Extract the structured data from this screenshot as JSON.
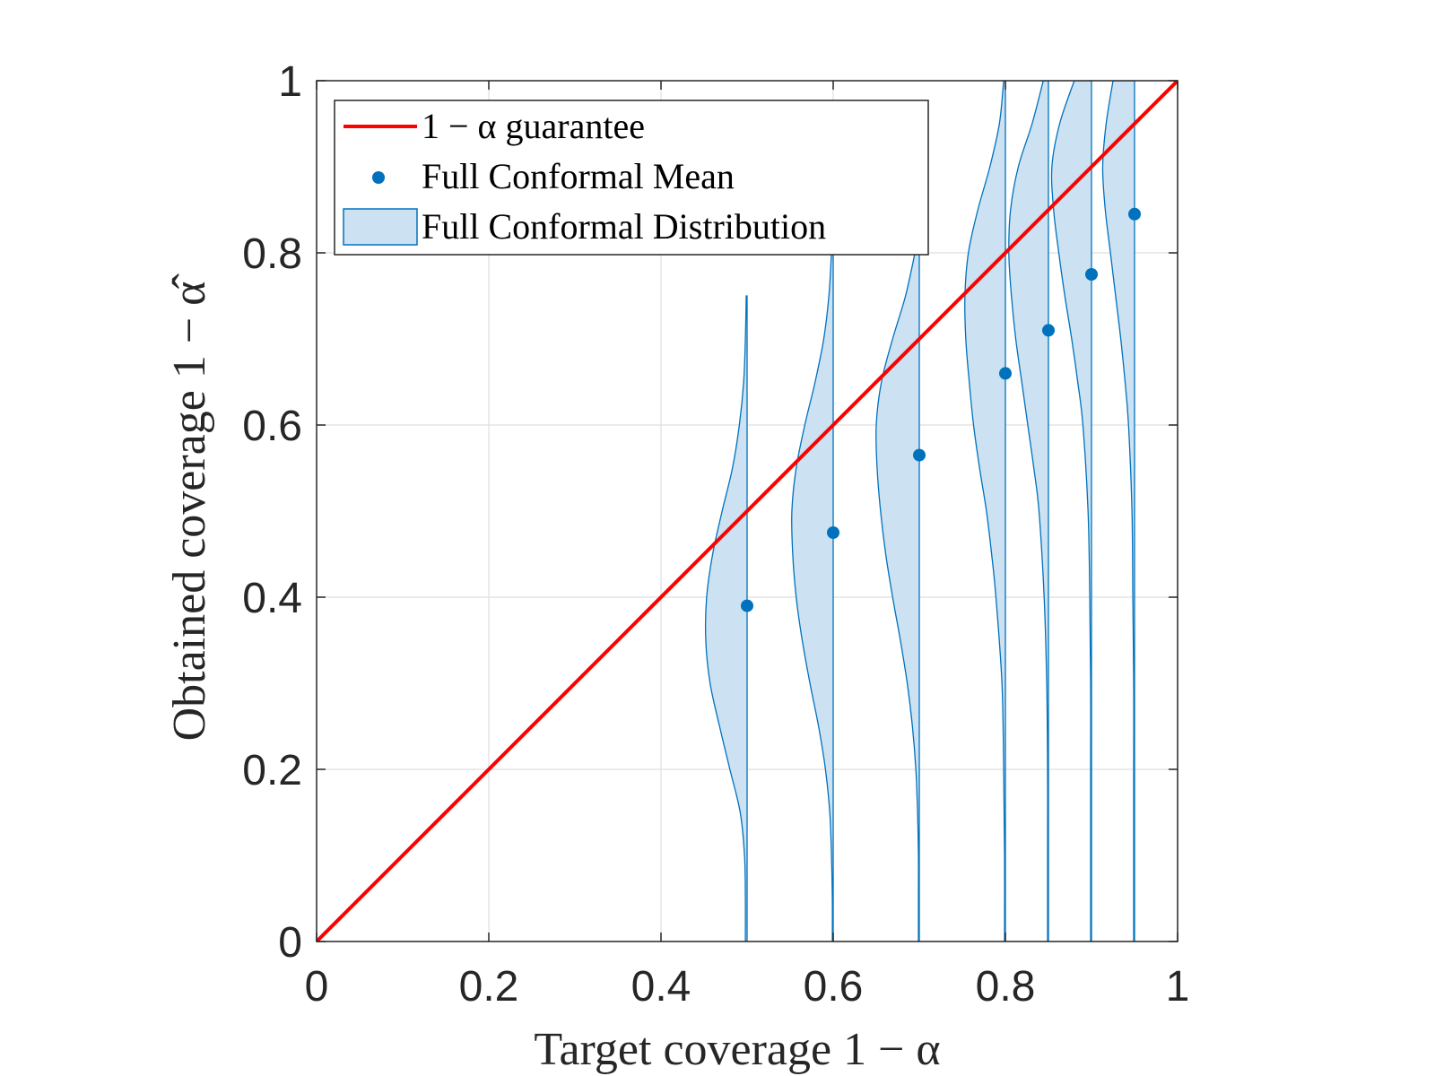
{
  "chart_data": {
    "type": "violin",
    "title": "",
    "xlabel": "Target coverage 1 − α",
    "ylabel": "Obtained coverage 1 − α̂",
    "xlim": [
      0,
      1
    ],
    "ylim": [
      0,
      1
    ],
    "grid": true,
    "legend_position": "top-left",
    "xticks": [
      0,
      0.2,
      0.4,
      0.6,
      0.8,
      1
    ],
    "yticks": [
      0,
      0.2,
      0.4,
      0.6,
      0.8,
      1
    ],
    "xtick_labels": [
      "0",
      "0.2",
      "0.4",
      "0.6",
      "0.8",
      "1"
    ],
    "ytick_labels": [
      "0",
      "0.2",
      "0.4",
      "0.6",
      "0.8",
      "1"
    ],
    "legend": [
      {
        "label": "1 − α guarantee",
        "kind": "line",
        "color": "#ff0000"
      },
      {
        "label": "Full Conformal Mean",
        "kind": "marker",
        "color": "#0072bd"
      },
      {
        "label": "Full Conformal Distribution",
        "kind": "patch",
        "color": "#0072bd"
      }
    ],
    "guarantee_line": {
      "x": [
        0,
        1
      ],
      "y": [
        0,
        1
      ],
      "color": "#ff0000"
    },
    "means": {
      "x": [
        0.5,
        0.6,
        0.7,
        0.8,
        0.85,
        0.9,
        0.95
      ],
      "y": [
        0.39,
        0.475,
        0.565,
        0.66,
        0.71,
        0.775,
        0.845
      ],
      "color": "#0072bd"
    },
    "distributions": [
      {
        "x": 0.5,
        "y": [
          0,
          0.05,
          0.1,
          0.15,
          0.2,
          0.25,
          0.3,
          0.35,
          0.4,
          0.45,
          0.5,
          0.55,
          0.6,
          0.65,
          0.7,
          0.75
        ],
        "half_width": [
          0.002,
          0.002,
          0.003,
          0.008,
          0.02,
          0.032,
          0.043,
          0.048,
          0.047,
          0.04,
          0.029,
          0.017,
          0.009,
          0.004,
          0.002,
          0.001
        ]
      },
      {
        "x": 0.6,
        "y": [
          0,
          0.05,
          0.1,
          0.15,
          0.2,
          0.25,
          0.3,
          0.35,
          0.4,
          0.45,
          0.5,
          0.55,
          0.6,
          0.65,
          0.7,
          0.75,
          0.8
        ],
        "half_width": [
          0.001,
          0.001,
          0.002,
          0.004,
          0.009,
          0.017,
          0.027,
          0.036,
          0.043,
          0.047,
          0.048,
          0.043,
          0.033,
          0.021,
          0.011,
          0.005,
          0.002
        ]
      },
      {
        "x": 0.7,
        "y": [
          0,
          0.05,
          0.1,
          0.15,
          0.2,
          0.25,
          0.3,
          0.35,
          0.4,
          0.45,
          0.5,
          0.55,
          0.6,
          0.65,
          0.7,
          0.75,
          0.8
        ],
        "half_width": [
          0.001,
          0.001,
          0.001,
          0.002,
          0.004,
          0.008,
          0.014,
          0.022,
          0.031,
          0.039,
          0.045,
          0.049,
          0.05,
          0.044,
          0.031,
          0.016,
          0.005
        ]
      },
      {
        "x": 0.8,
        "y": [
          0,
          0.1,
          0.2,
          0.3,
          0.4,
          0.45,
          0.5,
          0.55,
          0.6,
          0.65,
          0.7,
          0.75,
          0.8,
          0.85,
          0.9,
          0.95,
          1.0
        ],
        "half_width": [
          0.001,
          0.001,
          0.002,
          0.004,
          0.011,
          0.016,
          0.022,
          0.03,
          0.037,
          0.042,
          0.046,
          0.047,
          0.043,
          0.032,
          0.018,
          0.007,
          0.002
        ]
      },
      {
        "x": 0.85,
        "y": [
          0,
          0.1,
          0.2,
          0.3,
          0.4,
          0.5,
          0.55,
          0.6,
          0.65,
          0.7,
          0.75,
          0.8,
          0.85,
          0.9,
          0.95,
          1.0
        ],
        "half_width": [
          0.001,
          0.001,
          0.001,
          0.002,
          0.005,
          0.011,
          0.017,
          0.024,
          0.031,
          0.038,
          0.043,
          0.046,
          0.044,
          0.035,
          0.019,
          0.006
        ]
      },
      {
        "x": 0.9,
        "y": [
          0,
          0.1,
          0.2,
          0.3,
          0.4,
          0.5,
          0.6,
          0.65,
          0.7,
          0.75,
          0.8,
          0.85,
          0.9,
          0.95,
          1.0
        ],
        "half_width": [
          0.001,
          0.001,
          0.001,
          0.001,
          0.002,
          0.004,
          0.01,
          0.016,
          0.023,
          0.031,
          0.038,
          0.044,
          0.046,
          0.037,
          0.02
        ]
      },
      {
        "x": 0.95,
        "y": [
          0,
          0.1,
          0.2,
          0.3,
          0.4,
          0.5,
          0.6,
          0.65,
          0.7,
          0.75,
          0.8,
          0.85,
          0.9,
          0.95,
          1.0
        ],
        "half_width": [
          0.001,
          0.001,
          0.001,
          0.001,
          0.002,
          0.003,
          0.007,
          0.011,
          0.016,
          0.022,
          0.028,
          0.034,
          0.037,
          0.033,
          0.025
        ]
      }
    ]
  }
}
